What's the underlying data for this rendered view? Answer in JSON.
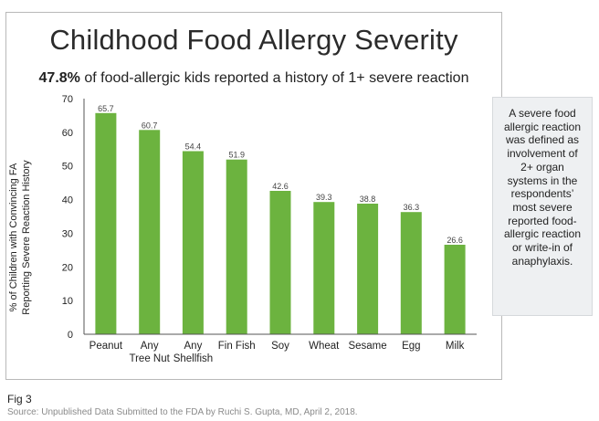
{
  "figure_label": "Fig 3",
  "source": "Source: Unpublished Data Submitted to the FDA by Ruchi S. Gupta, MD, April 2, 2018.",
  "note": "A severe food allergic reaction was defined as involvement of 2+ organ systems in the respondents’ most severe reported food-allergic reaction or write-in of anaphylaxis.",
  "colors": {
    "bar": "#6cb33f",
    "axis": "#555555"
  },
  "chart_data": {
    "type": "bar",
    "title": "Childhood Food Allergy Severity",
    "subtitle_bold": "47.8%",
    "subtitle_rest": " of food-allergic kids reported a history of 1+ severe reaction",
    "ylabel_line1": "% of Children with Convincing FA",
    "ylabel_line2": "Reporting Severe Reaction History",
    "xlabel": "",
    "ylim": [
      0,
      70
    ],
    "yticks": [
      "0",
      "10",
      "20",
      "30",
      "40",
      "50",
      "60",
      "70"
    ],
    "categories": [
      [
        "Peanut"
      ],
      [
        "Any",
        "Tree Nut"
      ],
      [
        "Any",
        "Shellfish"
      ],
      [
        "Fin Fish"
      ],
      [
        "Soy"
      ],
      [
        "Wheat"
      ],
      [
        "Sesame"
      ],
      [
        "Egg"
      ],
      [
        "Milk"
      ]
    ],
    "values": [
      65.7,
      60.7,
      54.4,
      51.9,
      42.6,
      39.3,
      38.8,
      36.3,
      26.6
    ],
    "value_labels": [
      "65.7",
      "60.7",
      "54.4",
      "51.9",
      "42.6",
      "39.3",
      "38.8",
      "36.3",
      "26.6"
    ],
    "grid": false,
    "legend": "none"
  }
}
